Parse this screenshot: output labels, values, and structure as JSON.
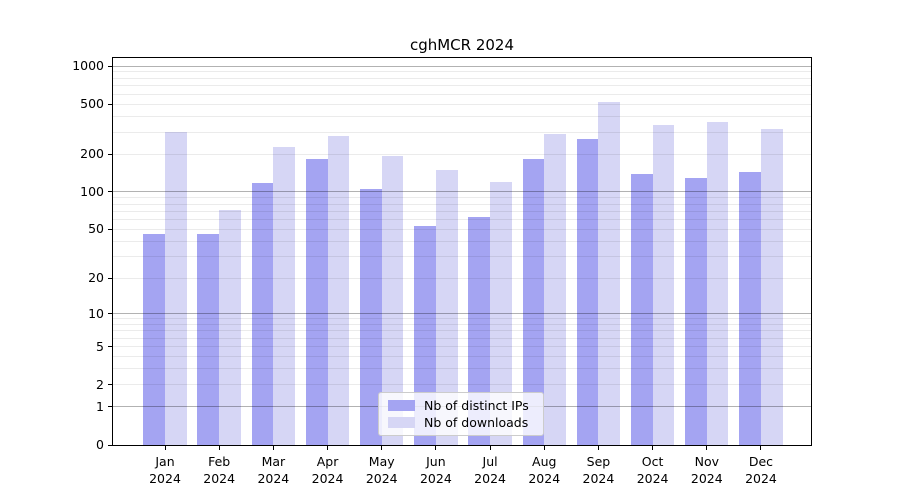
{
  "title": "cghMCR 2024",
  "colors": {
    "distinct_ips": "#a4a4f2",
    "downloads": "#d6d6f5",
    "grid_major": "rgba(0,0,0,0.30)",
    "grid_minor": "rgba(0,0,0,0.08)",
    "axis": "#000000",
    "legend_border": "#cccccc"
  },
  "legend": {
    "items": [
      {
        "label": "Nb of distinct IPs",
        "color_key": "distinct_ips"
      },
      {
        "label": "Nb of downloads",
        "color_key": "downloads"
      }
    ]
  },
  "chart_data": {
    "type": "bar",
    "title": "cghMCR 2024",
    "categories": [
      "Jan 2024",
      "Feb 2024",
      "Mar 2024",
      "Apr 2024",
      "May 2024",
      "Jun 2024",
      "Jul 2024",
      "Aug 2024",
      "Sep 2024",
      "Oct 2024",
      "Nov 2024",
      "Dec 2024"
    ],
    "series": [
      {
        "name": "Nb of distinct IPs",
        "color_key": "distinct_ips",
        "values": [
          46,
          46,
          117,
          184,
          105,
          53,
          63,
          184,
          262,
          140,
          130,
          143
        ]
      },
      {
        "name": "Nb of downloads",
        "color_key": "downloads",
        "values": [
          303,
          72,
          230,
          277,
          192,
          150,
          119,
          291,
          523,
          340,
          358,
          318
        ]
      }
    ],
    "xlabel": "",
    "ylabel": "",
    "yscale": "log1p",
    "ylim": [
      0,
      1160
    ],
    "yticks": [
      0,
      1,
      2,
      5,
      10,
      20,
      50,
      100,
      200,
      500,
      1000
    ],
    "major_gridlines": [
      1,
      10,
      100,
      1000
    ],
    "minor_gridlines": [
      2,
      3,
      4,
      5,
      6,
      7,
      8,
      9,
      20,
      30,
      40,
      50,
      60,
      70,
      80,
      90,
      200,
      300,
      400,
      500,
      600,
      700,
      800,
      900
    ],
    "grid": true,
    "legend_position": "lower center"
  }
}
